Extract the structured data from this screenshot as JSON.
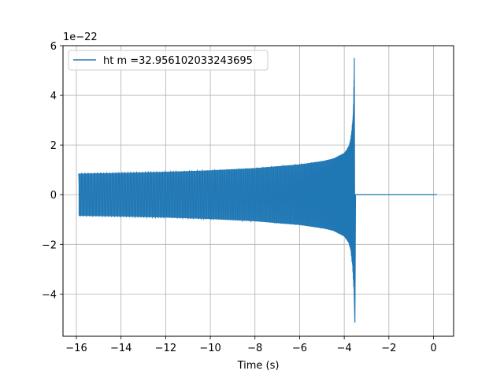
{
  "chart_data": {
    "type": "line",
    "title": "",
    "xlabel": "Time (s)",
    "ylabel": "",
    "y_offset_label": "1e−22",
    "xlim": [
      -16.6,
      0.9
    ],
    "ylim": [
      -5.7,
      6.0
    ],
    "y_scale": 1e-22,
    "grid": true,
    "legend_position": "upper-left",
    "x_ticks": [
      -16,
      -14,
      -12,
      -10,
      -8,
      -6,
      -4,
      -2,
      0
    ],
    "x_tick_labels": [
      "−16",
      "−14",
      "−12",
      "−10",
      "−8",
      "−6",
      "−4",
      "−2",
      "0"
    ],
    "y_ticks": [
      -4,
      -2,
      0,
      2,
      4,
      6
    ],
    "y_tick_labels": [
      "−4",
      "−2",
      "0",
      "2",
      "4",
      "6"
    ],
    "series": [
      {
        "name": "ht m =32.956102033243695",
        "color": "#1f77b4",
        "signal": "chirp",
        "x_start": -15.9,
        "merger_time": -3.55,
        "x_end": 0.15,
        "envelope": {
          "x": [
            -15.9,
            -14,
            -12,
            -10,
            -8,
            -6,
            -5,
            -4.5,
            -4,
            -3.8,
            -3.7,
            -3.6,
            -3.55
          ],
          "upper": [
            0.85,
            0.88,
            0.92,
            0.98,
            1.07,
            1.22,
            1.35,
            1.45,
            1.68,
            1.95,
            2.3,
            3.2,
            5.5
          ],
          "lower": [
            -0.85,
            -0.88,
            -0.92,
            -0.98,
            -1.07,
            -1.22,
            -1.35,
            -1.45,
            -1.68,
            -1.95,
            -2.3,
            -3.2,
            -5.15
          ]
        },
        "post_merger_value": 0
      }
    ]
  }
}
